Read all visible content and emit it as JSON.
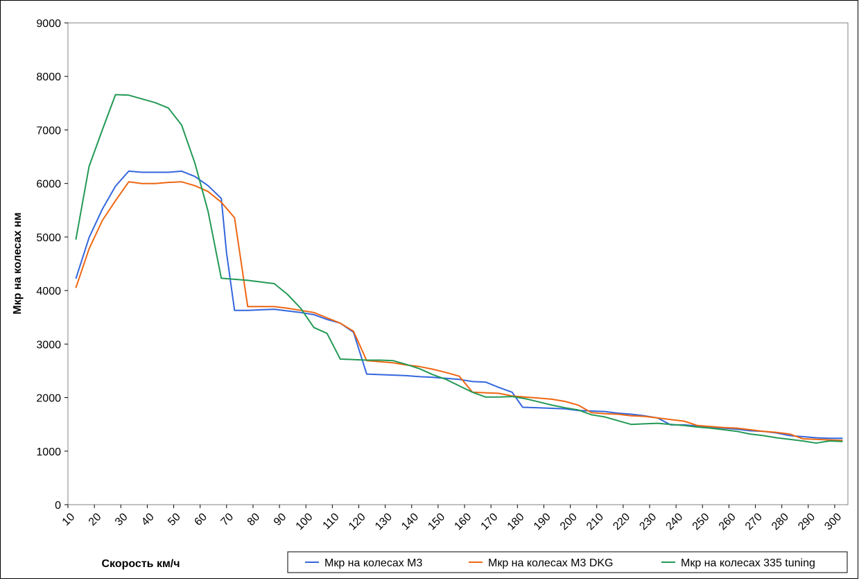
{
  "chart_data": {
    "type": "line",
    "xlabel": "Скорость км/ч",
    "ylabel": "Мкр на колесах нм",
    "ylim": [
      0,
      9000
    ],
    "xlim": [
      10,
      305
    ],
    "yticks": [
      0,
      1000,
      2000,
      3000,
      4000,
      5000,
      6000,
      7000,
      8000,
      9000
    ],
    "xticks": [
      10,
      20,
      30,
      40,
      50,
      60,
      70,
      80,
      90,
      100,
      110,
      120,
      130,
      140,
      150,
      160,
      170,
      180,
      190,
      200,
      210,
      220,
      230,
      240,
      250,
      260,
      270,
      280,
      290,
      300
    ],
    "grid": false,
    "legend_position": "bottom-right",
    "series": [
      {
        "name": "Мкр на колесах M3",
        "color": "#3366dd",
        "points": [
          [
            13,
            4220
          ],
          [
            18,
            4990
          ],
          [
            23,
            5520
          ],
          [
            28,
            5950
          ],
          [
            33,
            6230
          ],
          [
            38,
            6210
          ],
          [
            43,
            6210
          ],
          [
            48,
            6210
          ],
          [
            53,
            6230
          ],
          [
            58,
            6130
          ],
          [
            63,
            5960
          ],
          [
            68,
            5720
          ],
          [
            70,
            4700
          ],
          [
            73,
            3630
          ],
          [
            78,
            3630
          ],
          [
            83,
            3640
          ],
          [
            88,
            3650
          ],
          [
            93,
            3620
          ],
          [
            98,
            3590
          ],
          [
            103,
            3550
          ],
          [
            108,
            3460
          ],
          [
            113,
            3390
          ],
          [
            118,
            3220
          ],
          [
            123,
            2440
          ],
          [
            128,
            2430
          ],
          [
            133,
            2420
          ],
          [
            138,
            2410
          ],
          [
            143,
            2390
          ],
          [
            148,
            2380
          ],
          [
            153,
            2360
          ],
          [
            158,
            2340
          ],
          [
            163,
            2300
          ],
          [
            168,
            2290
          ],
          [
            173,
            2190
          ],
          [
            178,
            2100
          ],
          [
            182,
            1820
          ],
          [
            188,
            1810
          ],
          [
            193,
            1800
          ],
          [
            198,
            1790
          ],
          [
            203,
            1760
          ],
          [
            208,
            1750
          ],
          [
            213,
            1740
          ],
          [
            218,
            1710
          ],
          [
            223,
            1690
          ],
          [
            228,
            1660
          ],
          [
            233,
            1620
          ],
          [
            238,
            1490
          ],
          [
            243,
            1490
          ],
          [
            248,
            1470
          ],
          [
            253,
            1450
          ],
          [
            258,
            1430
          ],
          [
            263,
            1410
          ],
          [
            268,
            1380
          ],
          [
            273,
            1370
          ],
          [
            278,
            1340
          ],
          [
            283,
            1290
          ],
          [
            288,
            1270
          ],
          [
            293,
            1250
          ],
          [
            298,
            1240
          ],
          [
            303,
            1240
          ]
        ]
      },
      {
        "name": "Мкр на колесах M3 DKG",
        "color": "#ee6611",
        "points": [
          [
            13,
            4050
          ],
          [
            18,
            4780
          ],
          [
            23,
            5310
          ],
          [
            28,
            5680
          ],
          [
            33,
            6030
          ],
          [
            38,
            6000
          ],
          [
            43,
            6000
          ],
          [
            48,
            6020
          ],
          [
            53,
            6030
          ],
          [
            58,
            5960
          ],
          [
            63,
            5850
          ],
          [
            68,
            5650
          ],
          [
            73,
            5360
          ],
          [
            78,
            3700
          ],
          [
            83,
            3700
          ],
          [
            88,
            3700
          ],
          [
            93,
            3670
          ],
          [
            98,
            3630
          ],
          [
            103,
            3590
          ],
          [
            108,
            3490
          ],
          [
            113,
            3390
          ],
          [
            118,
            3240
          ],
          [
            123,
            2690
          ],
          [
            128,
            2670
          ],
          [
            133,
            2650
          ],
          [
            138,
            2610
          ],
          [
            143,
            2580
          ],
          [
            148,
            2530
          ],
          [
            153,
            2470
          ],
          [
            158,
            2400
          ],
          [
            163,
            2100
          ],
          [
            168,
            2090
          ],
          [
            173,
            2080
          ],
          [
            178,
            2030
          ],
          [
            183,
            2010
          ],
          [
            188,
            1990
          ],
          [
            193,
            1970
          ],
          [
            198,
            1930
          ],
          [
            203,
            1860
          ],
          [
            208,
            1720
          ],
          [
            213,
            1700
          ],
          [
            218,
            1690
          ],
          [
            223,
            1660
          ],
          [
            228,
            1650
          ],
          [
            233,
            1620
          ],
          [
            238,
            1590
          ],
          [
            243,
            1560
          ],
          [
            248,
            1480
          ],
          [
            253,
            1460
          ],
          [
            258,
            1440
          ],
          [
            263,
            1430
          ],
          [
            268,
            1400
          ],
          [
            273,
            1370
          ],
          [
            278,
            1350
          ],
          [
            283,
            1320
          ],
          [
            288,
            1230
          ],
          [
            293,
            1220
          ],
          [
            298,
            1210
          ],
          [
            303,
            1200
          ]
        ]
      },
      {
        "name": "Мкр на колесах 335 tuning",
        "color": "#229955",
        "points": [
          [
            13,
            4950
          ],
          [
            18,
            6320
          ],
          [
            23,
            7000
          ],
          [
            28,
            7660
          ],
          [
            33,
            7650
          ],
          [
            38,
            7580
          ],
          [
            43,
            7510
          ],
          [
            48,
            7410
          ],
          [
            53,
            7090
          ],
          [
            58,
            6380
          ],
          [
            63,
            5480
          ],
          [
            68,
            4230
          ],
          [
            73,
            4210
          ],
          [
            78,
            4190
          ],
          [
            83,
            4160
          ],
          [
            88,
            4130
          ],
          [
            93,
            3930
          ],
          [
            98,
            3670
          ],
          [
            103,
            3310
          ],
          [
            108,
            3200
          ],
          [
            113,
            2720
          ],
          [
            118,
            2710
          ],
          [
            123,
            2700
          ],
          [
            128,
            2700
          ],
          [
            133,
            2690
          ],
          [
            138,
            2620
          ],
          [
            143,
            2540
          ],
          [
            148,
            2430
          ],
          [
            153,
            2340
          ],
          [
            158,
            2220
          ],
          [
            163,
            2100
          ],
          [
            168,
            2010
          ],
          [
            173,
            2010
          ],
          [
            178,
            2020
          ],
          [
            183,
            1980
          ],
          [
            188,
            1920
          ],
          [
            193,
            1860
          ],
          [
            198,
            1810
          ],
          [
            203,
            1770
          ],
          [
            208,
            1680
          ],
          [
            213,
            1640
          ],
          [
            218,
            1570
          ],
          [
            223,
            1500
          ],
          [
            228,
            1510
          ],
          [
            233,
            1520
          ],
          [
            238,
            1500
          ],
          [
            243,
            1480
          ],
          [
            248,
            1450
          ],
          [
            253,
            1430
          ],
          [
            258,
            1400
          ],
          [
            263,
            1370
          ],
          [
            268,
            1320
          ],
          [
            273,
            1290
          ],
          [
            278,
            1250
          ],
          [
            283,
            1220
          ],
          [
            288,
            1190
          ],
          [
            293,
            1150
          ],
          [
            298,
            1190
          ],
          [
            303,
            1180
          ]
        ]
      }
    ]
  }
}
